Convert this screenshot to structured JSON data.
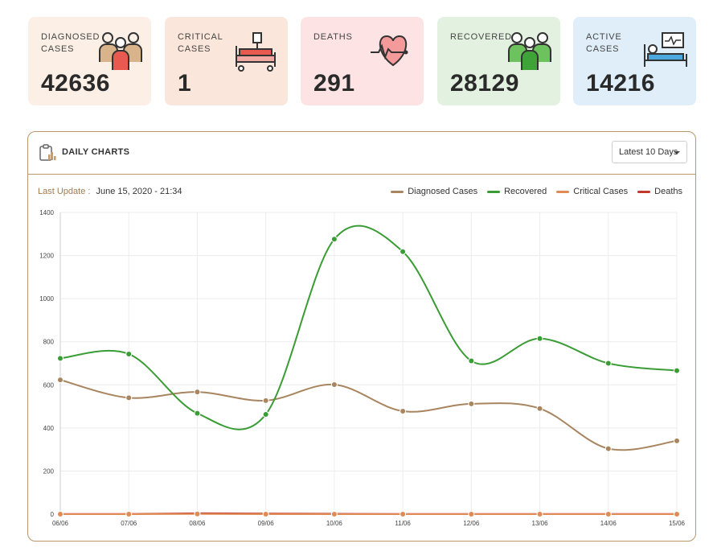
{
  "stats": [
    {
      "key": "diagnosed",
      "label": "Diagnosed Cases",
      "value": "42636",
      "bg": "#fbefe6",
      "icon": "people-group-icon"
    },
    {
      "key": "critical",
      "label": "Critical Cases",
      "value": "1",
      "bg": "#fae6da",
      "icon": "hospital-bed-icon"
    },
    {
      "key": "deaths",
      "label": "Deaths",
      "value": "291",
      "bg": "#fde3e3",
      "icon": "heartbeat-icon"
    },
    {
      "key": "recovered",
      "label": "Recovered",
      "value": "28129",
      "bg": "#e3f2e0",
      "icon": "recovered-people-icon"
    },
    {
      "key": "active",
      "label": "Active Cases",
      "value": "14216",
      "bg": "#dfeef8",
      "icon": "patient-monitor-icon"
    }
  ],
  "panel": {
    "title": "Daily Charts",
    "icon": "clipboard-chart-icon",
    "period_selected": "Latest 10 Days",
    "last_update_label": "Last Update :",
    "last_update_value": "June 15, 2020 - 21:34"
  },
  "colors": {
    "diagnosed": "#a8855f",
    "recovered": "#3a9c35",
    "critical": "#e08a55",
    "deaths": "#c0392b",
    "grid": "#ececec",
    "border": "#b9976a"
  },
  "chart_data": {
    "type": "line",
    "x": [
      "06/06",
      "07/06",
      "08/06",
      "09/06",
      "10/06",
      "11/06",
      "12/06",
      "13/06",
      "14/06",
      "15/06"
    ],
    "ylim": [
      0,
      1400
    ],
    "yticks": [
      0,
      200,
      400,
      600,
      800,
      1000,
      1200,
      1400
    ],
    "grid": true,
    "legend": "top-right",
    "series": [
      {
        "name": "Diagnosed Cases",
        "color": "#a8855f",
        "values": [
          623,
          540,
          567,
          527,
          601,
          478,
          512,
          490,
          304,
          340
        ]
      },
      {
        "name": "Recovered",
        "color": "#3a9c35",
        "values": [
          723,
          743,
          468,
          463,
          1276,
          1218,
          711,
          815,
          700,
          666
        ]
      },
      {
        "name": "Critical Cases",
        "color": "#e08a55",
        "values": [
          0,
          0,
          1,
          0,
          0,
          0,
          0,
          0,
          0,
          0
        ]
      },
      {
        "name": "Deaths",
        "color": "#c0392b",
        "values": [
          1,
          1,
          4,
          3,
          2,
          1,
          1,
          1,
          1,
          1
        ]
      }
    ]
  }
}
